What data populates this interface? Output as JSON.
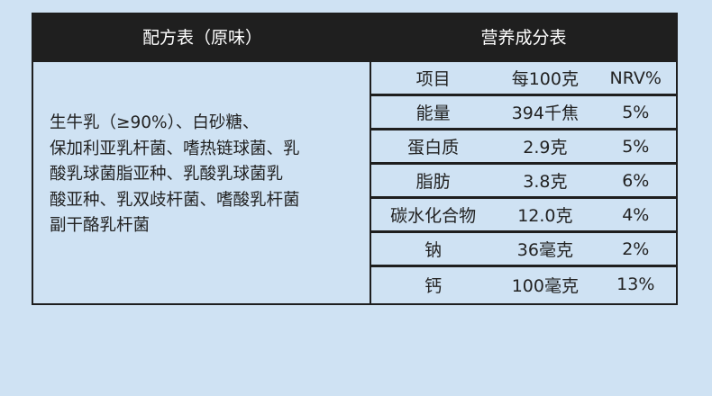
{
  "formula": {
    "title": "配方表（原味）",
    "ingredients_lines": [
      "生牛乳（≥90%）、白砂糖、",
      "保加利亚乳杆菌、嗜热链球菌、乳",
      "酸乳球菌脂亚种、乳酸乳球菌乳",
      "酸亚种、乳双歧杆菌、嗜酸乳杆菌",
      "副干酪乳杆菌"
    ]
  },
  "nutrition": {
    "title": "营养成分表",
    "headers": [
      "项目",
      "每100克",
      "NRV%"
    ],
    "rows": [
      [
        "能量",
        "394千焦",
        "5%"
      ],
      [
        "蛋白质",
        "2.9克",
        "5%"
      ],
      [
        "脂肪",
        "3.8克",
        "6%"
      ],
      [
        "碳水化合物",
        "12.0克",
        "4%"
      ],
      [
        "钠",
        "36毫克",
        "2%"
      ],
      [
        "钙",
        "100毫克",
        "13%"
      ]
    ]
  },
  "colors": {
    "background": "#cfe2f3",
    "header": "#1f1f1f",
    "border": "#1e1e1e"
  }
}
